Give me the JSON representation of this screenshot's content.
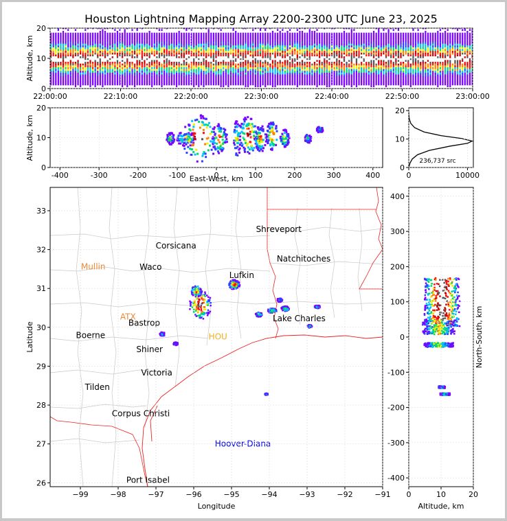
{
  "chart_data": [
    {
      "id": "time-altitude",
      "type": "heatmap",
      "title": "Houston Lightning Mapping Array 2200-2300 UTC June 23, 2025",
      "xlabel": "",
      "ylabel": "Altitude, km",
      "x_tick_labels": [
        "22:00:00",
        "22:10:00",
        "22:20:00",
        "22:30:00",
        "22:40:00",
        "22:50:00",
        "23:00:00"
      ],
      "xlim_minutes": [
        0,
        60
      ],
      "y_ticks": [
        0,
        10,
        20
      ],
      "ylim": [
        0,
        20
      ],
      "band_center_km": 9.5,
      "band_halfwidth_km": 5.5,
      "faint_extent_km": [
        0,
        20
      ]
    },
    {
      "id": "eastwest-altitude",
      "type": "heatmap",
      "xlabel": "East-West, km",
      "ylabel": "Altitude, km",
      "x_ticks": [
        -400,
        -300,
        -200,
        -100,
        0,
        100,
        200,
        300,
        400
      ],
      "xlim": [
        -425,
        425
      ],
      "y_ticks": [
        0,
        10,
        20
      ],
      "ylim": [
        0,
        20
      ],
      "cells": [
        {
          "x": -120,
          "w": 10,
          "z": 10,
          "h": 4,
          "i": 0.55
        },
        {
          "x": -80,
          "w": 25,
          "z": 10,
          "h": 5,
          "i": 0.6
        },
        {
          "x": -45,
          "w": 45,
          "z": 10,
          "h": 16,
          "i": 1.0
        },
        {
          "x": 5,
          "w": 20,
          "z": 10,
          "h": 10,
          "i": 0.75
        },
        {
          "x": 50,
          "w": 10,
          "z": 10,
          "h": 12,
          "i": 0.55
        },
        {
          "x": 80,
          "w": 25,
          "z": 11,
          "h": 13,
          "i": 0.85
        },
        {
          "x": 110,
          "w": 15,
          "z": 10,
          "h": 9,
          "i": 0.7
        },
        {
          "x": 140,
          "w": 15,
          "z": 11,
          "h": 10,
          "i": 0.75
        },
        {
          "x": 172,
          "w": 12,
          "z": 10,
          "h": 6,
          "i": 0.55
        },
        {
          "x": 232,
          "w": 8,
          "z": 10,
          "h": 3,
          "i": 0.4
        },
        {
          "x": 262,
          "w": 8,
          "z": 13,
          "h": 2,
          "i": 0.4
        }
      ]
    },
    {
      "id": "altitude-histogram",
      "type": "line",
      "x": [
        0,
        200,
        600,
        1500,
        3500,
        7000,
        10000,
        10800,
        9000,
        5500,
        2600,
        1000,
        350,
        100,
        20,
        0
      ],
      "y": [
        0,
        1.5,
        3,
        4.5,
        6,
        7.5,
        8.5,
        9.3,
        10.2,
        11.2,
        12.5,
        14,
        15.5,
        17,
        18.5,
        20
      ],
      "xlim": [
        0,
        11000
      ],
      "x_ticks": [
        0,
        10000
      ],
      "ylim": [
        0,
        21
      ],
      "y_ticks": [
        0,
        10,
        20
      ],
      "annotation": "236,737 src"
    },
    {
      "id": "plan-view-map",
      "type": "scatter",
      "xlabel": "Longitude",
      "ylabel": "Latitude",
      "xlim": [
        -99.8,
        -91
      ],
      "ylim": [
        25.9,
        33.6
      ],
      "x_ticks": [
        -99,
        -98,
        -97,
        -96,
        -95,
        -94,
        -93,
        -92,
        -91
      ],
      "y_ticks": [
        26,
        27,
        28,
        29,
        30,
        31,
        32,
        33
      ],
      "places": [
        {
          "name": "Shreveport",
          "lon": -93.75,
          "lat": 32.52,
          "color": "#000000"
        },
        {
          "name": "Corsicana",
          "lon": -96.47,
          "lat": 32.1,
          "color": "#000000"
        },
        {
          "name": "Natchitoches",
          "lon": -93.09,
          "lat": 31.76,
          "color": "#000000"
        },
        {
          "name": "Mullin",
          "lon": -98.66,
          "lat": 31.56,
          "color": "#ee8833"
        },
        {
          "name": "Waco",
          "lon": -97.14,
          "lat": 31.55,
          "color": "#000000"
        },
        {
          "name": "Lufkin",
          "lon": -94.73,
          "lat": 31.34,
          "color": "#000000"
        },
        {
          "name": "ATX",
          "lon": -97.74,
          "lat": 30.27,
          "color": "#ee8833"
        },
        {
          "name": "Bastrop",
          "lon": -97.31,
          "lat": 30.11,
          "color": "#000000"
        },
        {
          "name": "Lake Charles",
          "lon": -93.21,
          "lat": 30.23,
          "color": "#000000"
        },
        {
          "name": "Boerne",
          "lon": -98.73,
          "lat": 29.79,
          "color": "#000000"
        },
        {
          "name": "HOU",
          "lon": -95.36,
          "lat": 29.76,
          "color": "#f0b020"
        },
        {
          "name": "Shiner",
          "lon": -97.17,
          "lat": 29.43,
          "color": "#000000"
        },
        {
          "name": "Victoria",
          "lon": -96.98,
          "lat": 28.83,
          "color": "#000000"
        },
        {
          "name": "Tilden",
          "lon": -98.55,
          "lat": 28.46,
          "color": "#000000"
        },
        {
          "name": "Corpus Christi",
          "lon": -97.4,
          "lat": 27.78,
          "color": "#000000"
        },
        {
          "name": "Hoover-Diana",
          "lon": -94.7,
          "lat": 27.0,
          "color": "#0000ee"
        },
        {
          "name": "Port Isabel",
          "lon": -97.21,
          "lat": 26.07,
          "color": "#000000"
        }
      ],
      "storms": [
        {
          "lon": -95.85,
          "lat": 30.6,
          "w": 0.6,
          "h": 0.75,
          "i": 1.0
        },
        {
          "lon": -95.95,
          "lat": 30.95,
          "w": 0.3,
          "h": 0.3,
          "i": 0.7
        },
        {
          "lon": -94.95,
          "lat": 31.12,
          "w": 0.3,
          "h": 0.25,
          "i": 0.85
        },
        {
          "lon": -93.6,
          "lat": 30.5,
          "w": 0.22,
          "h": 0.13,
          "i": 0.6
        },
        {
          "lon": -93.95,
          "lat": 30.45,
          "w": 0.25,
          "h": 0.12,
          "i": 0.55
        },
        {
          "lon": -94.3,
          "lat": 30.35,
          "w": 0.18,
          "h": 0.12,
          "i": 0.5
        },
        {
          "lon": -93.75,
          "lat": 30.72,
          "w": 0.15,
          "h": 0.1,
          "i": 0.4
        },
        {
          "lon": -92.75,
          "lat": 30.55,
          "w": 0.15,
          "h": 0.08,
          "i": 0.4
        },
        {
          "lon": -92.95,
          "lat": 30.05,
          "w": 0.12,
          "h": 0.08,
          "i": 0.35
        },
        {
          "lon": -96.85,
          "lat": 29.85,
          "w": 0.15,
          "h": 0.1,
          "i": 0.35
        },
        {
          "lon": -96.5,
          "lat": 29.6,
          "w": 0.12,
          "h": 0.08,
          "i": 0.3
        },
        {
          "lon": -94.1,
          "lat": 28.3,
          "w": 0.08,
          "h": 0.05,
          "i": 0.3
        }
      ]
    },
    {
      "id": "altitude-northsouth",
      "type": "heatmap",
      "xlabel": "Altitude, km",
      "ylabel": "North-South, km",
      "x_ticks": [
        0,
        10,
        20
      ],
      "xlim": [
        0,
        20
      ],
      "y_ticks": [
        -400,
        -300,
        -200,
        -100,
        0,
        100,
        200,
        300,
        400
      ],
      "ylim": [
        -425,
        425
      ],
      "cells": [
        {
          "y": 100,
          "h": 140,
          "z": 10,
          "w": 11,
          "i": 1.0
        },
        {
          "y": 30,
          "h": 40,
          "z": 9,
          "w": 10,
          "i": 0.5
        },
        {
          "y": -20,
          "h": 12,
          "z": 9,
          "w": 9,
          "i": 0.45
        },
        {
          "y": -140,
          "h": 6,
          "z": 10,
          "w": 2,
          "i": 0.3
        },
        {
          "y": -160,
          "h": 6,
          "z": 11,
          "w": 3,
          "i": 0.3
        }
      ]
    }
  ]
}
